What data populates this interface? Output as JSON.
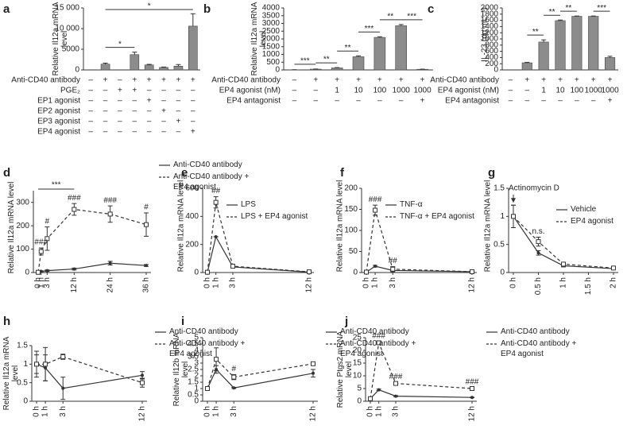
{
  "chart_data": [
    {
      "type": "bar",
      "label": "a",
      "ylabel": "Relative Il12a mRNA level",
      "values": [
        0,
        1400,
        0,
        3700,
        1200,
        600,
        900,
        10600
      ],
      "errors": [
        0,
        250,
        0,
        600,
        150,
        100,
        400,
        3000
      ],
      "color": "#8c8c8c",
      "ylim": [
        0,
        15000
      ],
      "yticks": [
        0,
        5000,
        {
          "value": 10000,
          "label": "10 000"
        },
        {
          "value": 15000,
          "label": "15 000"
        }
      ],
      "treatments": [
        {
          "name": "Anti-CD40 antibody",
          "signs": [
            "–",
            "+",
            "–",
            "+",
            "+",
            "+",
            "+",
            "+"
          ]
        },
        {
          "name": "PGE₂",
          "signs": [
            "–",
            "–",
            "+",
            "+",
            "–",
            "–",
            "–",
            "–"
          ]
        },
        {
          "name": "EP1 agonist",
          "signs": [
            "–",
            "–",
            "–",
            "–",
            "+",
            "–",
            "–",
            "–"
          ]
        },
        {
          "name": "EP2 agonist",
          "signs": [
            "–",
            "–",
            "–",
            "–",
            "–",
            "+",
            "–",
            "–"
          ]
        },
        {
          "name": "EP3 agonist",
          "signs": [
            "–",
            "–",
            "–",
            "–",
            "–",
            "–",
            "+",
            "–"
          ]
        },
        {
          "name": "EP4 agonist",
          "signs": [
            "–",
            "–",
            "–",
            "–",
            "–",
            "–",
            "–",
            "+"
          ]
        }
      ],
      "significance": [
        {
          "between": [
            1,
            3
          ],
          "label": "*"
        },
        {
          "between": [
            1,
            7
          ],
          "label": "*"
        }
      ]
    },
    {
      "type": "bar",
      "label": "b",
      "ylabel": "Relative Il12a mRNA level",
      "values": [
        10,
        50,
        130,
        850,
        2100,
        2850,
        40
      ],
      "errors": [
        5,
        10,
        20,
        60,
        40,
        80,
        10
      ],
      "color": "#8c8c8c",
      "ylim": [
        0,
        4000
      ],
      "yticks": [
        0,
        500,
        1000,
        1500,
        2000,
        2500,
        3000,
        3500,
        4000
      ],
      "treatments": [
        {
          "name": "Anti-CD40 antibody",
          "signs": [
            "–",
            "+",
            "+",
            "+",
            "+",
            "+",
            "+"
          ]
        },
        {
          "name": "EP4 agonist (nM)",
          "signs": [
            "–",
            "–",
            "1",
            "10",
            "100",
            "1000",
            "1000"
          ]
        },
        {
          "name": "EP4 antagonist",
          "signs": [
            "–",
            "–",
            "–",
            "–",
            "–",
            "–",
            "+"
          ]
        }
      ],
      "significance": [
        {
          "between": [
            0,
            1
          ],
          "label": "***"
        },
        {
          "between": [
            1,
            2
          ],
          "label": "**"
        },
        {
          "between": [
            2,
            3
          ],
          "label": "**"
        },
        {
          "between": [
            3,
            4
          ],
          "label": "***"
        },
        {
          "between": [
            4,
            5
          ],
          "label": "**"
        },
        {
          "between": [
            5,
            6
          ],
          "label": "***"
        }
      ]
    },
    {
      "type": "bar",
      "label": "c",
      "ylabel": "IL-23 (pg mL⁻¹)",
      "values": [
        0,
        230,
        900,
        1590,
        1730,
        1730,
        400
      ],
      "errors": [
        0,
        15,
        70,
        20,
        10,
        10,
        40
      ],
      "color": "#8c8c8c",
      "ylim": [
        0,
        2000
      ],
      "yticks": [
        0,
        200,
        400,
        600,
        800,
        1000,
        1200,
        1400,
        1600,
        1800,
        2000
      ],
      "treatments": [
        {
          "name": "Anti-CD40 antibody",
          "signs": [
            "–",
            "+",
            "+",
            "+",
            "+",
            "+",
            "+"
          ]
        },
        {
          "name": "EP4 agonist (nM)",
          "signs": [
            "–",
            "–",
            "1",
            "10",
            "100",
            "1000",
            "1000"
          ]
        },
        {
          "name": "EP4 antagonist",
          "signs": [
            "–",
            "–",
            "–",
            "–",
            "–",
            "–",
            "+"
          ]
        }
      ],
      "significance": [
        {
          "between": [
            1,
            2
          ],
          "label": "**"
        },
        {
          "between": [
            2,
            3
          ],
          "label": "**"
        },
        {
          "between": [
            3,
            4
          ],
          "label": "**"
        },
        {
          "between": [
            5,
            6
          ],
          "label": "***"
        }
      ]
    },
    {
      "type": "line",
      "label": "d",
      "ylabel": "Relative Il12a mRNA level",
      "x": [
        0,
        1,
        3,
        12,
        24,
        36
      ],
      "xlim": [
        0,
        36
      ],
      "xticks": [
        {
          "value": 0,
          "label": "0 h"
        },
        {
          "value": 1,
          "label": "1 h"
        },
        {
          "value": 3,
          "label": "3 h"
        },
        {
          "value": 12,
          "label": "12 h"
        },
        {
          "value": 24,
          "label": "24 h"
        },
        {
          "value": 36,
          "label": "36 h"
        }
      ],
      "ylim": [
        0,
        350
      ],
      "yticks": [
        0,
        100,
        200,
        300
      ],
      "series": [
        {
          "name": "Anti-CD40 antibody",
          "color": "#333333",
          "dash": false,
          "marker": "circle",
          "values": [
            1,
            5,
            8,
            15,
            40,
            30
          ],
          "errors": [
            1,
            2,
            3,
            4,
            8,
            4
          ]
        },
        {
          "name": "Anti-CD40 antibody + EP4 agonist",
          "color": "#333333",
          "dash": true,
          "marker": "square-open",
          "values": [
            1,
            90,
            145,
            270,
            250,
            205
          ],
          "errors": [
            0,
            15,
            50,
            25,
            35,
            50
          ]
        }
      ],
      "annotations": [
        {
          "x": 1,
          "label": "###"
        },
        {
          "x": 3,
          "label": "#"
        },
        {
          "x": 12,
          "label": "###"
        },
        {
          "x": 24,
          "label": "###"
        },
        {
          "x": 36,
          "label": "#"
        },
        {
          "x": [
            0,
            12
          ],
          "label": "***"
        }
      ]
    },
    {
      "type": "line",
      "label": "e",
      "ylabel": "Relative Il12a mRNA level",
      "x": [
        0,
        1,
        3,
        12
      ],
      "xlim": [
        0,
        12
      ],
      "xticks": [
        {
          "value": 0,
          "label": "0 h"
        },
        {
          "value": 1,
          "label": "1 h"
        },
        {
          "value": 3,
          "label": "3 h"
        },
        {
          "value": 12,
          "label": "12 h"
        }
      ],
      "ylim": [
        0,
        600
      ],
      "yticks": [
        0,
        200,
        400,
        600
      ],
      "series": [
        {
          "name": "LPS",
          "color": "#333333",
          "dash": false,
          "marker": "circle",
          "values": [
            2,
            255,
            40,
            3
          ],
          "errors": [
            0,
            0,
            5,
            1
          ]
        },
        {
          "name": "LPS + EP4 agonist",
          "color": "#333333",
          "dash": true,
          "marker": "square-open",
          "values": [
            2,
            500,
            45,
            5
          ],
          "errors": [
            0,
            40,
            5,
            2
          ]
        }
      ],
      "annotations": [
        {
          "x": 1,
          "label": "##"
        }
      ]
    },
    {
      "type": "line",
      "label": "f",
      "ylabel": "Relative Il12a mRNA level",
      "x": [
        0,
        1,
        3,
        12
      ],
      "xlim": [
        0,
        12
      ],
      "xticks": [
        {
          "value": 0,
          "label": "0 h"
        },
        {
          "value": 1,
          "label": "1 h"
        },
        {
          "value": 3,
          "label": "3 h"
        },
        {
          "value": 12,
          "label": "12 h"
        }
      ],
      "ylim": [
        0,
        200
      ],
      "yticks": [
        0,
        50,
        100,
        150,
        200
      ],
      "series": [
        {
          "name": "TNF-α",
          "color": "#333333",
          "dash": false,
          "marker": "circle",
          "values": [
            1,
            15,
            5,
            2
          ],
          "errors": [
            0,
            2,
            1,
            0
          ]
        },
        {
          "name": "TNF-α + EP4 agonist",
          "color": "#333333",
          "dash": true,
          "marker": "square-open",
          "values": [
            1,
            148,
            8,
            2
          ],
          "errors": [
            0,
            12,
            6,
            0
          ]
        }
      ],
      "annotations": [
        {
          "x": 1,
          "label": "###"
        },
        {
          "x": 3,
          "label": "##"
        }
      ]
    },
    {
      "type": "line",
      "label": "g",
      "ylabel": "Relative Il12a mRNA level",
      "x": [
        0,
        0.5,
        1,
        2
      ],
      "xlim": [
        0,
        2
      ],
      "xticks": [
        {
          "value": 0,
          "label": "0 h"
        },
        {
          "value": 0.5,
          "label": "0.5 h"
        },
        {
          "value": 1,
          "label": "1 h"
        },
        {
          "value": 1.5,
          "label": "1.5 h"
        },
        {
          "value": 2,
          "label": "2 h"
        }
      ],
      "ylim": [
        0,
        1.5
      ],
      "yticks": [
        0,
        0.5,
        1,
        1.5
      ],
      "series": [
        {
          "name": "Vehicle",
          "color": "#333333",
          "dash": false,
          "marker": "circle",
          "values": [
            1,
            0.35,
            0.12,
            0.07
          ],
          "errors": [
            0.2,
            0.04,
            0.02,
            0.01
          ]
        },
        {
          "name": "EP4 agonist",
          "color": "#333333",
          "dash": true,
          "marker": "square-open",
          "values": [
            1,
            0.55,
            0.15,
            0.08
          ],
          "errors": [
            0.2,
            0.08,
            0.02,
            0.02
          ]
        }
      ],
      "annotations": [
        {
          "x": 0.5,
          "label": "n.s."
        },
        {
          "x": 0,
          "label": "Actinomycin D",
          "arrow": true
        }
      ]
    },
    {
      "type": "line",
      "label": "h",
      "ylabel": "Relative Il12a mRNA level",
      "x": [
        0,
        1,
        3,
        12
      ],
      "xlim": [
        0,
        12
      ],
      "xticks": [
        {
          "value": 0,
          "label": "0 h"
        },
        {
          "value": 1,
          "label": "1 h"
        },
        {
          "value": 3,
          "label": "3 h"
        },
        {
          "value": 12,
          "label": "12 h"
        }
      ],
      "ylim": [
        0,
        1.5
      ],
      "yticks": [
        0,
        0.5,
        1,
        1.5
      ],
      "series": [
        {
          "name": "Anti-CD40 antibody",
          "color": "#333333",
          "dash": false,
          "marker": "circle",
          "values": [
            1,
            0.9,
            0.35,
            0.7
          ],
          "errors": [
            0.25,
            0.35,
            0.3,
            0.1
          ]
        },
        {
          "name": "Anti-CD40 antibody + EP4 agonist",
          "color": "#333333",
          "dash": true,
          "marker": "square-open",
          "values": [
            1,
            1,
            1.2,
            0.5
          ],
          "errors": [
            0.35,
            0.45,
            0.07,
            0.12
          ]
        }
      ],
      "annotations": []
    },
    {
      "type": "line",
      "label": "i",
      "ylabel": "Relative Il12b mRNA level",
      "x": [
        0,
        1,
        3,
        12
      ],
      "xlim": [
        0,
        12
      ],
      "xticks": [
        {
          "value": 0,
          "label": "0 h"
        },
        {
          "value": 1,
          "label": "1 h"
        },
        {
          "value": 3,
          "label": "3 h"
        },
        {
          "value": 12,
          "label": "12 h"
        }
      ],
      "ylim": [
        0,
        5
      ],
      "yticks": [
        0,
        0.5,
        1,
        1.5,
        2,
        2.5,
        3,
        3.5,
        4,
        4.5,
        5
      ],
      "series": [
        {
          "name": "Anti-CD40 antibody",
          "color": "#333333",
          "dash": false,
          "marker": "circle",
          "values": [
            1,
            2.5,
            1.05,
            2.2
          ],
          "errors": [
            0.05,
            0.3,
            0.05,
            0.3
          ]
        },
        {
          "name": "Anti-CD40 antibody + EP4 agonist",
          "color": "#333333",
          "dash": true,
          "marker": "square-open",
          "values": [
            1,
            3.3,
            1.9,
            2.95
          ],
          "errors": [
            0.05,
            0.9,
            0.2,
            0.05
          ]
        }
      ],
      "annotations": [
        {
          "x": 3,
          "label": "#"
        }
      ]
    },
    {
      "type": "line",
      "label": "j",
      "ylabel": "Relative Ptgs2 mRNA level",
      "x": [
        0,
        1,
        3,
        12
      ],
      "xlim": [
        0,
        12
      ],
      "xticks": [
        {
          "value": 0,
          "label": "0 h"
        },
        {
          "value": 1,
          "label": "1 h"
        },
        {
          "value": 3,
          "label": "3 h"
        },
        {
          "value": 12,
          "label": "12 h"
        }
      ],
      "ylim": [
        0,
        25
      ],
      "yticks": [
        0,
        5,
        10,
        15,
        20,
        25
      ],
      "series": [
        {
          "name": "Anti-CD40 antibody",
          "color": "#333333",
          "dash": false,
          "marker": "circle",
          "values": [
            1,
            4.5,
            2,
            1.5
          ],
          "errors": [
            0.1,
            0.3,
            0.2,
            0.1
          ]
        },
        {
          "name": "Anti-CD40 antibody + EP4 agonist",
          "color": "#333333",
          "dash": true,
          "marker": "square-open",
          "values": [
            1,
            23,
            7,
            5
          ],
          "errors": [
            0.1,
            0.5,
            0.4,
            0.3
          ]
        }
      ],
      "annotations": [
        {
          "x": 1,
          "label": "###"
        },
        {
          "x": 3,
          "label": "###"
        },
        {
          "x": 12,
          "label": "###"
        }
      ]
    }
  ]
}
